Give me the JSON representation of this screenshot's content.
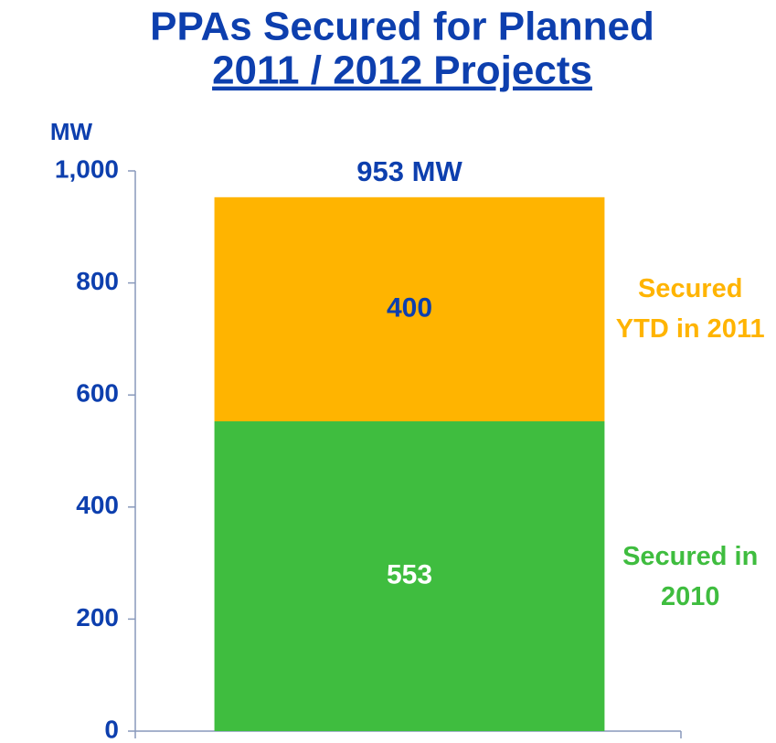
{
  "chart_data": {
    "type": "stacked_bar",
    "title": "PPAs Secured for Planned",
    "subtitle": "2011 / 2012 Projects",
    "y_label": "MW",
    "categories": [
      null
    ],
    "series": [
      {
        "name": "Secured in 2010",
        "color": "#3fbd3f",
        "label_color": "#ffffff",
        "values": [
          553
        ]
      },
      {
        "name": "Secured YTD in 2011",
        "color": "#ffb400",
        "label_color": "#0d3fae",
        "values": [
          400
        ]
      }
    ],
    "annotations": [
      "953 MW"
    ],
    "ylim": [
      0,
      1000
    ],
    "yticks": [
      0,
      200,
      400,
      600,
      800,
      {
        "value": 1000,
        "label": "1,000"
      }
    ],
    "grid": false
  }
}
